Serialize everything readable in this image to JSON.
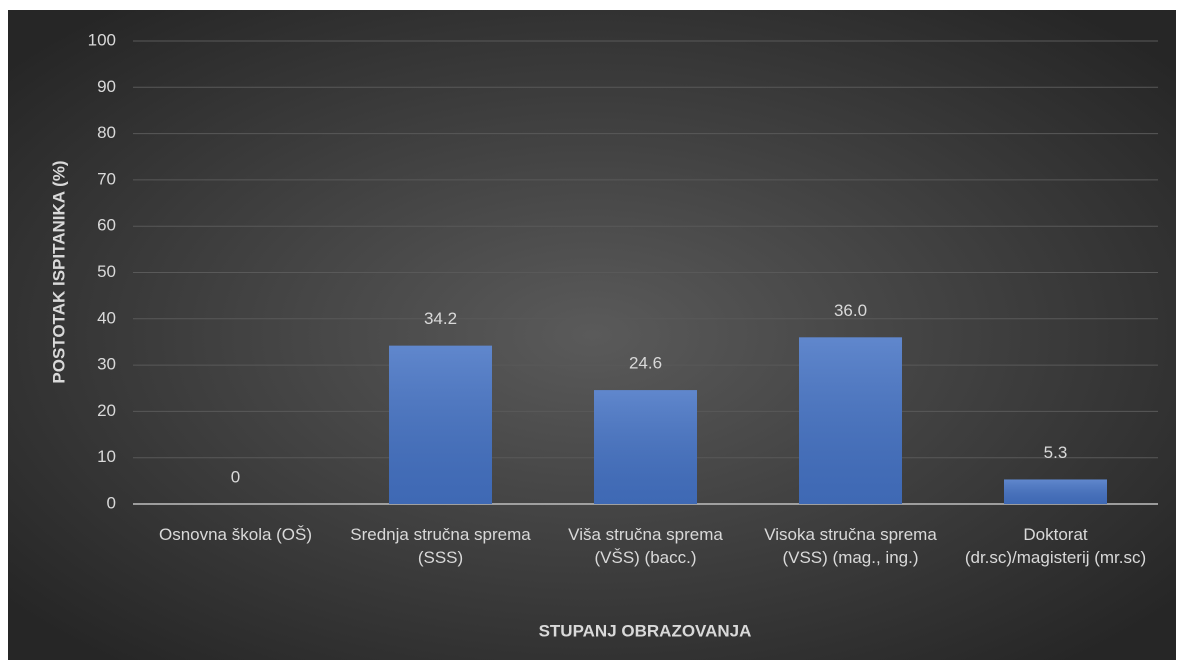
{
  "chart_data": {
    "type": "bar",
    "categories": [
      "Osnovna škola (OŠ)",
      "Srednja stručna sprema (SSS)",
      "Viša stručna sprema (VŠS) (bacc.)",
      "Visoka stručna sprema (VSS) (mag., ing.)",
      "Doktorat (dr.sc)/magisterij (mr.sc)"
    ],
    "values": [
      0,
      34.2,
      24.6,
      36,
      5.3
    ],
    "value_labels": [
      "0",
      "34.2",
      "24.6",
      "36.0",
      "5.3"
    ],
    "color": "#4472c4",
    "x_label": "STUPANJ OBRAZOVANJA",
    "y_label": "POSTOTAK ISPITANIKA (%)",
    "ylim": [
      0,
      100
    ],
    "yticks": [
      0,
      10,
      20,
      30,
      40,
      50,
      60,
      70,
      80,
      90,
      100
    ],
    "grid": true
  }
}
